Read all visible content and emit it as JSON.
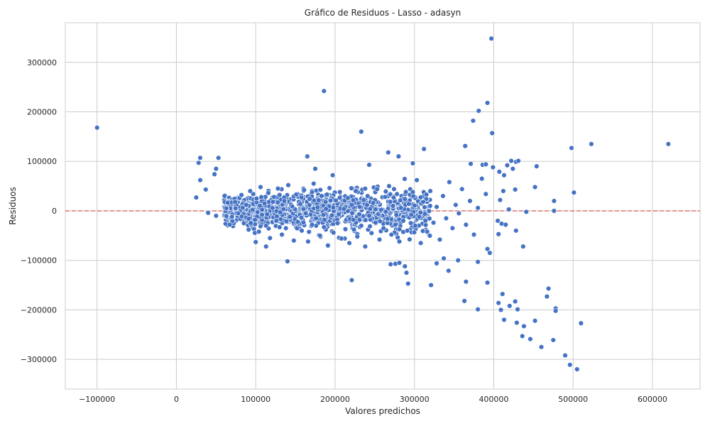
{
  "chart_data": {
    "type": "scatter",
    "title": "Gráfico de Residuos - Lasso - adasyn",
    "xlabel": "Valores predichos",
    "ylabel": "Residuos",
    "xlim": [
      -140000,
      660000
    ],
    "ylim": [
      -360000,
      380000
    ],
    "xticks": [
      -100000,
      0,
      100000,
      200000,
      300000,
      400000,
      500000,
      600000
    ],
    "xtick_labels": [
      "−100000",
      "0",
      "100000",
      "200000",
      "300000",
      "400000",
      "500000",
      "600000"
    ],
    "yticks": [
      -300000,
      -200000,
      -100000,
      0,
      100000,
      200000,
      300000
    ],
    "ytick_labels": [
      "−300000",
      "−200000",
      "−100000",
      "0",
      "100000",
      "200000",
      "300000"
    ],
    "grid": true,
    "reference_line": {
      "y": 0,
      "color": "#d9534f",
      "style": "dashed"
    },
    "point_color": "#4472c4",
    "points": [
      {
        "x": -100000,
        "y": 168000
      },
      {
        "x": 30000,
        "y": 107000
      },
      {
        "x": 28000,
        "y": 97000
      },
      {
        "x": 53000,
        "y": 107000
      },
      {
        "x": 50000,
        "y": 85000
      },
      {
        "x": 48000,
        "y": 74000
      },
      {
        "x": 30000,
        "y": 62000
      },
      {
        "x": 37000,
        "y": 43000
      },
      {
        "x": 25000,
        "y": 27000
      },
      {
        "x": 40000,
        "y": -4000
      },
      {
        "x": 50000,
        "y": -10000
      },
      {
        "x": 186000,
        "y": 242000
      },
      {
        "x": 233000,
        "y": 160000
      },
      {
        "x": 165000,
        "y": 110000
      },
      {
        "x": 175000,
        "y": 85000
      },
      {
        "x": 197000,
        "y": 72000
      },
      {
        "x": 243000,
        "y": 93000
      },
      {
        "x": 267000,
        "y": 118000
      },
      {
        "x": 280000,
        "y": 110000
      },
      {
        "x": 298000,
        "y": 96000
      },
      {
        "x": 312000,
        "y": 125000
      },
      {
        "x": 100000,
        "y": -63000
      },
      {
        "x": 113000,
        "y": -72000
      },
      {
        "x": 140000,
        "y": -102000
      },
      {
        "x": 221000,
        "y": -140000
      },
      {
        "x": 270000,
        "y": -108000
      },
      {
        "x": 276000,
        "y": -107000
      },
      {
        "x": 281000,
        "y": -105000
      },
      {
        "x": 288000,
        "y": -112000
      },
      {
        "x": 290000,
        "y": -125000
      },
      {
        "x": 292000,
        "y": -147000
      },
      {
        "x": 321000,
        "y": -150000
      },
      {
        "x": 328000,
        "y": -106000
      },
      {
        "x": 337000,
        "y": -96000
      },
      {
        "x": 343000,
        "y": -121000
      },
      {
        "x": 355000,
        "y": -100000
      },
      {
        "x": 363000,
        "y": -182000
      },
      {
        "x": 365000,
        "y": -143000
      },
      {
        "x": 380000,
        "y": -103000
      },
      {
        "x": 380000,
        "y": -199000
      },
      {
        "x": 392000,
        "y": -145000
      },
      {
        "x": 392000,
        "y": -77000
      },
      {
        "x": 395000,
        "y": -85000
      },
      {
        "x": 397000,
        "y": 348000
      },
      {
        "x": 392000,
        "y": 218000
      },
      {
        "x": 381000,
        "y": 202000
      },
      {
        "x": 374000,
        "y": 182000
      },
      {
        "x": 398000,
        "y": 157000
      },
      {
        "x": 364000,
        "y": 131000
      },
      {
        "x": 371000,
        "y": 95000
      },
      {
        "x": 386000,
        "y": 93000
      },
      {
        "x": 390000,
        "y": 94000
      },
      {
        "x": 399000,
        "y": 88000
      },
      {
        "x": 407000,
        "y": 79000
      },
      {
        "x": 413000,
        "y": 72000
      },
      {
        "x": 417000,
        "y": 92000
      },
      {
        "x": 422000,
        "y": 101000
      },
      {
        "x": 428000,
        "y": 99000
      },
      {
        "x": 431000,
        "y": 101000
      },
      {
        "x": 424000,
        "y": 85000
      },
      {
        "x": 454000,
        "y": 90000
      },
      {
        "x": 498000,
        "y": 127000
      },
      {
        "x": 523000,
        "y": 135000
      },
      {
        "x": 620000,
        "y": 135000
      },
      {
        "x": 501000,
        "y": 37000
      },
      {
        "x": 476000,
        "y": 20000
      },
      {
        "x": 476000,
        "y": 0
      },
      {
        "x": 441000,
        "y": -2000
      },
      {
        "x": 452000,
        "y": 48000
      },
      {
        "x": 437000,
        "y": -72000
      },
      {
        "x": 428000,
        "y": -40000
      },
      {
        "x": 406000,
        "y": -47000
      },
      {
        "x": 405000,
        "y": -20000
      },
      {
        "x": 410000,
        "y": -26000
      },
      {
        "x": 415000,
        "y": -28000
      },
      {
        "x": 408000,
        "y": 22000
      },
      {
        "x": 412000,
        "y": 40000
      },
      {
        "x": 427000,
        "y": 43000
      },
      {
        "x": 419000,
        "y": 3000
      },
      {
        "x": 411000,
        "y": -168000
      },
      {
        "x": 406000,
        "y": -186000
      },
      {
        "x": 409000,
        "y": -200000
      },
      {
        "x": 420000,
        "y": -192000
      },
      {
        "x": 427000,
        "y": -183000
      },
      {
        "x": 430000,
        "y": -199000
      },
      {
        "x": 413000,
        "y": -220000
      },
      {
        "x": 429000,
        "y": -226000
      },
      {
        "x": 438000,
        "y": -233000
      },
      {
        "x": 436000,
        "y": -253000
      },
      {
        "x": 446000,
        "y": -259000
      },
      {
        "x": 452000,
        "y": -222000
      },
      {
        "x": 460000,
        "y": -275000
      },
      {
        "x": 467000,
        "y": -173000
      },
      {
        "x": 469000,
        "y": -157000
      },
      {
        "x": 478000,
        "y": -197000
      },
      {
        "x": 478000,
        "y": -202000
      },
      {
        "x": 475000,
        "y": -261000
      },
      {
        "x": 490000,
        "y": -292000
      },
      {
        "x": 496000,
        "y": -311000
      },
      {
        "x": 505000,
        "y": -320000
      },
      {
        "x": 510000,
        "y": -227000
      },
      {
        "x": 63000,
        "y": 5000
      },
      {
        "x": 70000,
        "y": -12000
      },
      {
        "x": 74000,
        "y": 18000
      },
      {
        "x": 78000,
        "y": -5000
      },
      {
        "x": 82000,
        "y": 32000
      },
      {
        "x": 85000,
        "y": -25000
      },
      {
        "x": 88000,
        "y": 12000
      },
      {
        "x": 91000,
        "y": -38000
      },
      {
        "x": 93000,
        "y": 40000
      },
      {
        "x": 96000,
        "y": 2000
      },
      {
        "x": 99000,
        "y": -18000
      },
      {
        "x": 101000,
        "y": 25000
      },
      {
        "x": 104000,
        "y": -42000
      },
      {
        "x": 106000,
        "y": 48000
      },
      {
        "x": 108000,
        "y": -8000
      },
      {
        "x": 111000,
        "y": 15000
      },
      {
        "x": 113000,
        "y": -30000
      },
      {
        "x": 116000,
        "y": 36000
      },
      {
        "x": 118000,
        "y": -55000
      },
      {
        "x": 121000,
        "y": 6000
      },
      {
        "x": 123000,
        "y": 28000
      },
      {
        "x": 126000,
        "y": -20000
      },
      {
        "x": 128000,
        "y": 45000
      },
      {
        "x": 131000,
        "y": -3000
      },
      {
        "x": 133000,
        "y": -48000
      },
      {
        "x": 136000,
        "y": 20000
      },
      {
        "x": 138000,
        "y": -35000
      },
      {
        "x": 141000,
        "y": 52000
      },
      {
        "x": 143000,
        "y": -12000
      },
      {
        "x": 146000,
        "y": 9000
      },
      {
        "x": 148000,
        "y": -60000
      },
      {
        "x": 151000,
        "y": 33000
      },
      {
        "x": 153000,
        "y": -22000
      },
      {
        "x": 156000,
        "y": 14000
      },
      {
        "x": 158000,
        "y": -40000
      },
      {
        "x": 161000,
        "y": 42000
      },
      {
        "x": 163000,
        "y": -5000
      },
      {
        "x": 166000,
        "y": -62000
      },
      {
        "x": 168000,
        "y": 24000
      },
      {
        "x": 171000,
        "y": -28000
      },
      {
        "x": 173000,
        "y": 55000
      },
      {
        "x": 176000,
        "y": -15000
      },
      {
        "x": 178000,
        "y": 7000
      },
      {
        "x": 181000,
        "y": -50000
      },
      {
        "x": 183000,
        "y": 30000
      },
      {
        "x": 186000,
        "y": -33000
      },
      {
        "x": 188000,
        "y": 18000
      },
      {
        "x": 191000,
        "y": -70000
      },
      {
        "x": 193000,
        "y": 46000
      },
      {
        "x": 196000,
        "y": -9000
      },
      {
        "x": 198000,
        "y": -44000
      },
      {
        "x": 201000,
        "y": 21000
      },
      {
        "x": 203000,
        "y": -25000
      },
      {
        "x": 206000,
        "y": 38000
      },
      {
        "x": 208000,
        "y": -56000
      },
      {
        "x": 211000,
        "y": 4000
      },
      {
        "x": 213000,
        "y": -37000
      },
      {
        "x": 216000,
        "y": 26000
      },
      {
        "x": 218000,
        "y": -65000
      },
      {
        "x": 221000,
        "y": 12000
      },
      {
        "x": 223000,
        "y": -18000
      },
      {
        "x": 226000,
        "y": 40000
      },
      {
        "x": 228000,
        "y": -52000
      },
      {
        "x": 231000,
        "y": 8000
      },
      {
        "x": 233000,
        "y": -30000
      },
      {
        "x": 236000,
        "y": 22000
      },
      {
        "x": 238000,
        "y": -72000
      },
      {
        "x": 241000,
        "y": 30000
      },
      {
        "x": 243000,
        "y": -10000
      },
      {
        "x": 246000,
        "y": -45000
      },
      {
        "x": 248000,
        "y": 16000
      },
      {
        "x": 251000,
        "y": -24000
      },
      {
        "x": 253000,
        "y": 44000
      },
      {
        "x": 256000,
        "y": -58000
      },
      {
        "x": 258000,
        "y": 2000
      },
      {
        "x": 261000,
        "y": -35000
      },
      {
        "x": 263000,
        "y": 28000
      },
      {
        "x": 266000,
        "y": -16000
      },
      {
        "x": 268000,
        "y": 50000
      },
      {
        "x": 271000,
        "y": -48000
      },
      {
        "x": 273000,
        "y": 10000
      },
      {
        "x": 276000,
        "y": -28000
      },
      {
        "x": 278000,
        "y": 34000
      },
      {
        "x": 281000,
        "y": -62000
      },
      {
        "x": 283000,
        "y": 6000
      },
      {
        "x": 286000,
        "y": -20000
      },
      {
        "x": 288000,
        "y": 24000
      },
      {
        "x": 291000,
        "y": -40000
      },
      {
        "x": 293000,
        "y": 14000
      },
      {
        "x": 296000,
        "y": -8000
      },
      {
        "x": 298000,
        "y": 38000
      },
      {
        "x": 301000,
        "y": -30000
      },
      {
        "x": 303000,
        "y": 62000
      },
      {
        "x": 306000,
        "y": -12000
      },
      {
        "x": 308000,
        "y": -65000
      },
      {
        "x": 311000,
        "y": 18000
      },
      {
        "x": 316000,
        "y": -42000
      },
      {
        "x": 320000,
        "y": 40000
      },
      {
        "x": 324000,
        "y": -24000
      },
      {
        "x": 328000,
        "y": 8000
      },
      {
        "x": 332000,
        "y": -58000
      },
      {
        "x": 336000,
        "y": 30000
      },
      {
        "x": 340000,
        "y": -15000
      },
      {
        "x": 344000,
        "y": 58000
      },
      {
        "x": 348000,
        "y": -35000
      },
      {
        "x": 352000,
        "y": 12000
      },
      {
        "x": 356000,
        "y": -5000
      },
      {
        "x": 360000,
        "y": 44000
      },
      {
        "x": 365000,
        "y": -28000
      },
      {
        "x": 370000,
        "y": 20000
      },
      {
        "x": 375000,
        "y": -48000
      },
      {
        "x": 380000,
        "y": 6000
      },
      {
        "x": 385000,
        "y": 65000
      },
      {
        "x": 390000,
        "y": 34000
      }
    ]
  }
}
